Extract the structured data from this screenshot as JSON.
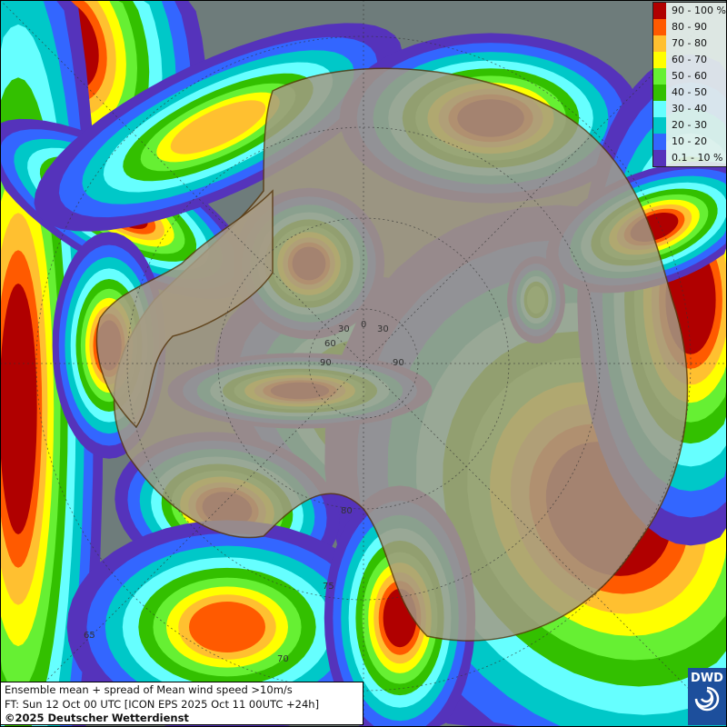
{
  "legend": {
    "items": [
      {
        "label": "90 - 100 %",
        "color": "#b00000"
      },
      {
        "label": "80 - 90",
        "color": "#ff5a00"
      },
      {
        "label": "70 - 80",
        "color": "#ffc030"
      },
      {
        "label": "60 - 70",
        "color": "#ffff00"
      },
      {
        "label": "50 - 60",
        "color": "#66f033"
      },
      {
        "label": "40 - 50",
        "color": "#33c000"
      },
      {
        "label": "30 - 40",
        "color": "#66ffff"
      },
      {
        "label": "20 - 30",
        "color": "#00c8c8"
      },
      {
        "label": "10 - 20",
        "color": "#3366ff"
      },
      {
        "label": "0.1 - 10 %",
        "color": "#5533bb"
      }
    ]
  },
  "info": {
    "line1": "Ensemble mean + spread of Mean wind speed >10m/s",
    "line2": "FT: Sun 12 Oct 00 UTC [ICON EPS 2025 Oct 11 00UTC +24h]",
    "line3": "©2025 Deutscher Wetterdienst"
  },
  "logo": {
    "text": "DWD"
  },
  "grid_labels": [
    "30",
    "0",
    "30",
    "60",
    "90",
    "90",
    "80",
    "80",
    "75",
    "70",
    "65"
  ]
}
